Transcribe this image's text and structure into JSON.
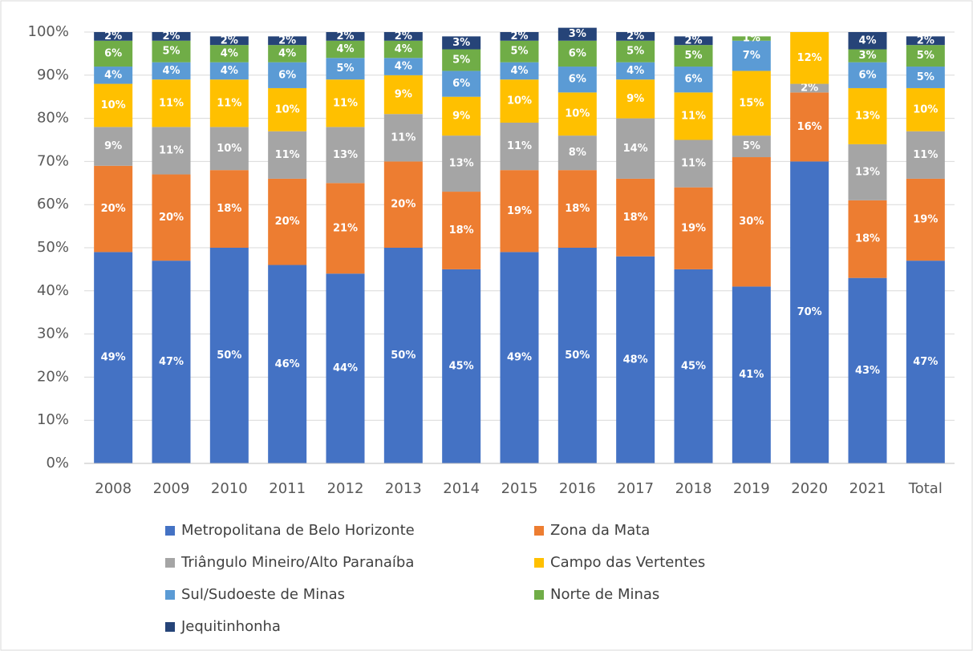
{
  "chart_data": {
    "type": "stacked_bar",
    "categories": [
      "2008",
      "2009",
      "2010",
      "2011",
      "2012",
      "2013",
      "2014",
      "2015",
      "2016",
      "2017",
      "2018",
      "2019",
      "2020",
      "2021",
      "Total"
    ],
    "series": [
      {
        "name": "Metropolitana de Belo Horizonte",
        "color": "#4472c4",
        "values": [
          49,
          47,
          50,
          46,
          44,
          50,
          45,
          49,
          50,
          48,
          45,
          41,
          70,
          43,
          47
        ],
        "value_labels": [
          "49%",
          "47%",
          "50%",
          "46%",
          "44%",
          "50%",
          "45%",
          "49%",
          "50%",
          "48%",
          "45%",
          "41%",
          "70%",
          "43%",
          "47%"
        ]
      },
      {
        "name": "Zona da Mata",
        "color": "#ed7d31",
        "values": [
          20,
          20,
          18,
          20,
          21,
          20,
          18,
          19,
          18,
          18,
          19,
          30,
          16,
          18,
          19
        ],
        "value_labels": [
          "20%",
          "20%",
          "18%",
          "20%",
          "21%",
          "20%",
          "18%",
          "19%",
          "18%",
          "18%",
          "19%",
          "30%",
          "16%",
          "18%",
          "19%"
        ]
      },
      {
        "name": "Triângulo Mineiro/Alto Paranaíba",
        "color": "#a5a5a5",
        "values": [
          9,
          11,
          10,
          11,
          13,
          11,
          13,
          11,
          8,
          14,
          11,
          5,
          2,
          13,
          11
        ],
        "value_labels": [
          "9%",
          "11%",
          "10%",
          "11%",
          "13%",
          "11%",
          "13%",
          "11%",
          "8%",
          "14%",
          "11%",
          "5%",
          "2%",
          "13%",
          "11%"
        ]
      },
      {
        "name": "Campo das Vertentes",
        "color": "#ffc000",
        "values": [
          10,
          11,
          11,
          10,
          11,
          9,
          9,
          10,
          10,
          9,
          11,
          15,
          12,
          13,
          10
        ],
        "value_labels": [
          "10%",
          "11%",
          "11%",
          "10%",
          "11%",
          "9%",
          "9%",
          "10%",
          "10%",
          "9%",
          "11%",
          "15%",
          "12%",
          "13%",
          "10%"
        ]
      },
      {
        "name": "Sul/Sudoeste de Minas",
        "color": "#5b9bd5",
        "values": [
          4,
          4,
          4,
          6,
          5,
          4,
          6,
          4,
          6,
          4,
          6,
          7,
          0,
          6,
          5
        ],
        "value_labels": [
          "4%",
          "4%",
          "4%",
          "6%",
          "5%",
          "4%",
          "6%",
          "4%",
          "6%",
          "4%",
          "6%",
          "7%",
          null,
          "6%",
          "5%"
        ]
      },
      {
        "name": "Norte de Minas",
        "color": "#70ad47",
        "values": [
          6,
          5,
          4,
          4,
          4,
          4,
          5,
          5,
          6,
          5,
          5,
          1,
          0,
          3,
          5
        ],
        "value_labels": [
          "6%",
          "5%",
          "4%",
          "4%",
          "4%",
          "4%",
          "5%",
          "5%",
          "6%",
          "5%",
          "5%",
          "1%",
          null,
          "3%",
          "5%"
        ]
      },
      {
        "name": "Jequitinhonha",
        "color": "#264478",
        "values": [
          2,
          2,
          2,
          2,
          2,
          2,
          3,
          2,
          3,
          2,
          2,
          0,
          0,
          4,
          2
        ],
        "value_labels": [
          "2%",
          "2%",
          "2%",
          "2%",
          "2%",
          "2%",
          "3%",
          "2%",
          "3%",
          "2%",
          "2%",
          null,
          null,
          "4%",
          "2%"
        ]
      }
    ],
    "ylim": [
      0,
      100
    ],
    "yticks": [
      {
        "value": 0,
        "label": "0%"
      },
      {
        "value": 10,
        "label": "10%"
      },
      {
        "value": 20,
        "label": "20%"
      },
      {
        "value": 30,
        "label": "30%"
      },
      {
        "value": 40,
        "label": "40%"
      },
      {
        "value": 50,
        "label": "50%"
      },
      {
        "value": 60,
        "label": "60%"
      },
      {
        "value": 70,
        "label": "70%"
      },
      {
        "value": 80,
        "label": "80%"
      },
      {
        "value": 90,
        "label": "90%"
      },
      {
        "value": 100,
        "label": "100%"
      }
    ],
    "grid": true
  }
}
